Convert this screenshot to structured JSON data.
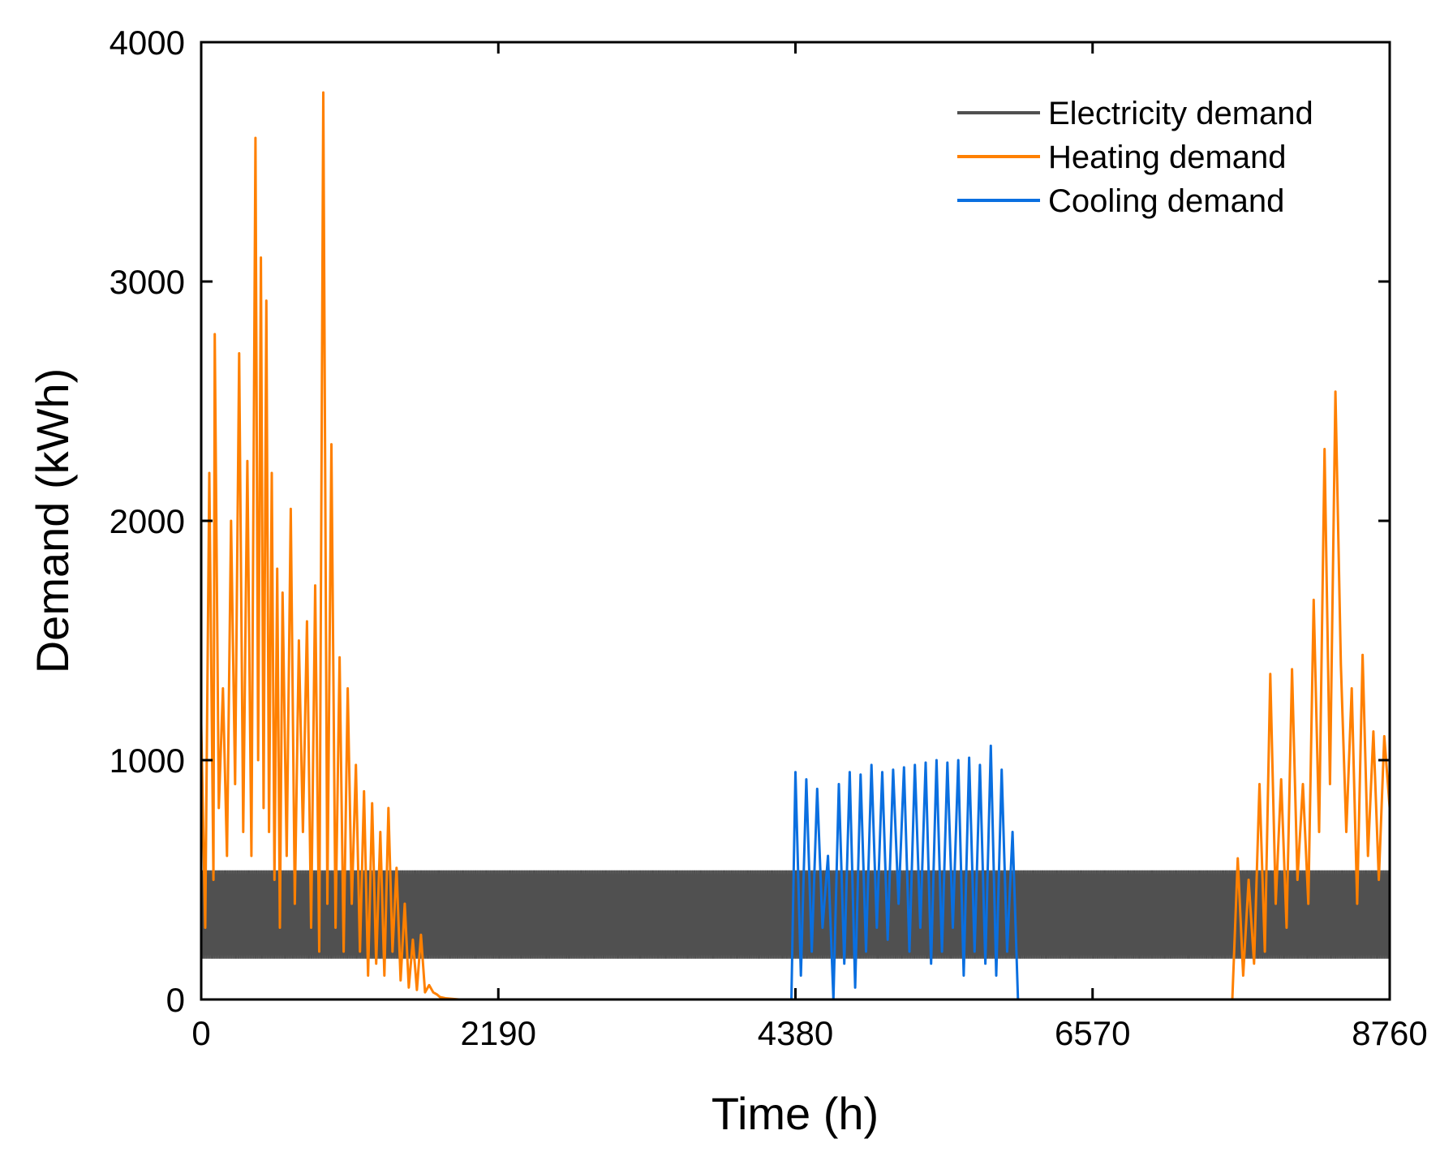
{
  "chart_data": {
    "type": "line",
    "title": "",
    "xlabel": "Time (h)",
    "ylabel": "Demand (kWh)",
    "xlim": [
      0,
      8760
    ],
    "ylim": [
      0,
      4000
    ],
    "xticks": [
      0,
      2190,
      4380,
      6570,
      8760
    ],
    "yticks": [
      0,
      1000,
      2000,
      3000,
      4000
    ],
    "xtick_labels": [
      "0",
      "2190",
      "4380",
      "6570",
      "8760"
    ],
    "ytick_labels": [
      "0",
      "1000",
      "2000",
      "3000",
      "4000"
    ],
    "grid": false,
    "legend_position": "top-right",
    "series": [
      {
        "name": "Electricity demand",
        "color": "#505050",
        "style": "dense-oscillation",
        "description_values": {
          "low": 170,
          "high": 540,
          "x_start": 0,
          "x_end": 8760
        }
      },
      {
        "name": "Heating demand",
        "color": "#ff8000",
        "style": "line",
        "x": [
          0,
          30,
          60,
          90,
          100,
          130,
          160,
          190,
          220,
          250,
          280,
          310,
          340,
          370,
          400,
          420,
          440,
          460,
          480,
          500,
          520,
          540,
          560,
          580,
          600,
          630,
          660,
          690,
          720,
          750,
          780,
          810,
          840,
          870,
          900,
          930,
          960,
          990,
          1020,
          1050,
          1080,
          1110,
          1140,
          1170,
          1200,
          1230,
          1260,
          1290,
          1320,
          1350,
          1380,
          1410,
          1440,
          1470,
          1500,
          1530,
          1560,
          1590,
          1620,
          1650,
          1680,
          1710,
          1740,
          1760,
          1800,
          1900,
          2000,
          2190,
          4380,
          6570,
          7600,
          7640,
          7680,
          7720,
          7760,
          7800,
          7840,
          7880,
          7920,
          7960,
          8000,
          8040,
          8080,
          8120,
          8160,
          8200,
          8240,
          8280,
          8320,
          8360,
          8400,
          8440,
          8480,
          8520,
          8560,
          8600,
          8640,
          8680,
          8720,
          8760
        ],
        "y": [
          1150,
          300,
          2200,
          500,
          2780,
          800,
          1300,
          600,
          2000,
          900,
          2700,
          700,
          2250,
          600,
          3600,
          1000,
          3100,
          800,
          2920,
          700,
          2200,
          500,
          1800,
          300,
          1700,
          600,
          2050,
          400,
          1500,
          700,
          1580,
          300,
          1730,
          200,
          3790,
          400,
          2320,
          300,
          1430,
          200,
          1300,
          400,
          980,
          200,
          870,
          100,
          820,
          150,
          700,
          100,
          800,
          200,
          550,
          80,
          400,
          50,
          250,
          40,
          270,
          30,
          60,
          30,
          20,
          10,
          5,
          0,
          0,
          0,
          0,
          0,
          0,
          590,
          100,
          500,
          150,
          900,
          200,
          1360,
          400,
          920,
          300,
          1380,
          500,
          900,
          400,
          1670,
          700,
          2300,
          900,
          2540,
          1400,
          700,
          1300,
          400,
          1440,
          600,
          1120,
          500,
          1100,
          800
        ],
        "values_note": "highly volatile hourly demand; values approximate"
      },
      {
        "name": "Cooling demand",
        "color": "#0a6fe0",
        "style": "line",
        "x": [
          0,
          4350,
          4380,
          4420,
          4460,
          4500,
          4540,
          4580,
          4620,
          4660,
          4700,
          4740,
          4780,
          4820,
          4860,
          4900,
          4940,
          4980,
          5020,
          5060,
          5100,
          5140,
          5180,
          5220,
          5260,
          5300,
          5340,
          5380,
          5420,
          5460,
          5500,
          5540,
          5580,
          5620,
          5660,
          5700,
          5740,
          5780,
          5820,
          5860,
          5900,
          5940,
          5980,
          6020,
          6060,
          6100,
          8760
        ],
        "y": [
          0,
          0,
          950,
          100,
          920,
          200,
          880,
          300,
          600,
          0,
          900,
          150,
          950,
          50,
          940,
          200,
          980,
          300,
          950,
          250,
          960,
          400,
          970,
          200,
          980,
          300,
          990,
          150,
          1000,
          200,
          990,
          300,
          1000,
          100,
          1010,
          200,
          980,
          150,
          1060,
          100,
          960,
          200,
          700,
          0,
          0,
          0,
          0
        ],
        "values_note": "summer cooling demand; values approximate"
      }
    ]
  }
}
